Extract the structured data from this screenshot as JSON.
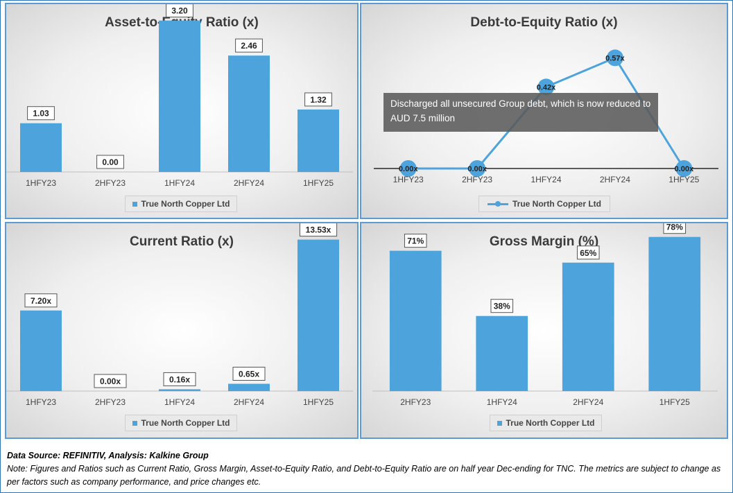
{
  "colors": {
    "bar": "#4da3dc",
    "panel_border": "#5b9bd5",
    "annotation_bg": "#5a5a5a"
  },
  "legend_label": "True North Copper Ltd",
  "chart_data": [
    {
      "type": "bar",
      "title": "Asset-to-Equity Ratio (x)",
      "categories": [
        "1HFY23",
        "2HFY23",
        "1HFY24",
        "2HFY24",
        "1HFY25"
      ],
      "values": [
        1.03,
        0.0,
        3.2,
        2.46,
        1.32
      ],
      "labels": [
        "1.03",
        "0.00",
        "3.20",
        "2.46",
        "1.32"
      ],
      "series": [
        {
          "name": "True North Copper Ltd",
          "values": [
            1.03,
            0.0,
            3.2,
            2.46,
            1.32
          ]
        }
      ],
      "ylim": [
        0,
        3.4
      ],
      "legend": "bottom"
    },
    {
      "type": "line",
      "title": "Debt-to-Equity Ratio (x)",
      "categories": [
        "1HFY23",
        "2HFY23",
        "1HFY24",
        "2HFY24",
        "1HFY25"
      ],
      "values": [
        0.0,
        0.0,
        0.42,
        0.57,
        0.0
      ],
      "labels": [
        "0.00x",
        "0.00x",
        "0.42x",
        "0.57x",
        "0.00x"
      ],
      "series": [
        {
          "name": "True North Copper Ltd",
          "values": [
            0.0,
            0.0,
            0.42,
            0.57,
            0.0
          ]
        }
      ],
      "ylim": [
        0,
        0.6
      ],
      "legend": "bottom",
      "annotation": "Discharged all unsecured Group debt, which is now reduced to AUD 7.5 million"
    },
    {
      "type": "bar",
      "title": "Current Ratio (x)",
      "categories": [
        "1HFY23",
        "2HFY23",
        "1HFY24",
        "2HFY24",
        "1HFY25"
      ],
      "values": [
        7.2,
        0.0,
        0.16,
        0.65,
        13.53
      ],
      "labels": [
        "7.20x",
        "0.00x",
        "0.16x",
        "0.65x",
        "13.53x"
      ],
      "series": [
        {
          "name": "True North Copper Ltd",
          "values": [
            7.2,
            0.0,
            0.16,
            0.65,
            13.53
          ]
        }
      ],
      "ylim": [
        0,
        14
      ],
      "legend": "bottom"
    },
    {
      "type": "bar",
      "title": "Gross Margin (%)",
      "categories": [
        "2HFY23",
        "1HFY24",
        "2HFY24",
        "1HFY25"
      ],
      "values": [
        71,
        38,
        65,
        78
      ],
      "labels": [
        "71%",
        "38%",
        "65%",
        "78%"
      ],
      "series": [
        {
          "name": "True North Copper Ltd",
          "values": [
            71,
            38,
            65,
            78
          ]
        }
      ],
      "ylim": [
        0,
        80
      ],
      "legend": "bottom"
    }
  ],
  "footer": {
    "source": "Data Source: REFINITIV, Analysis: Kalkine Group",
    "note": "Note: Figures and Ratios such as Current Ratio, Gross Margin, Asset-to-Equity Ratio, and Debt-to-Equity Ratio  are on half year Dec-ending for TNC. The metrics are subject to change as per factors such as company performance, and price changes etc."
  }
}
